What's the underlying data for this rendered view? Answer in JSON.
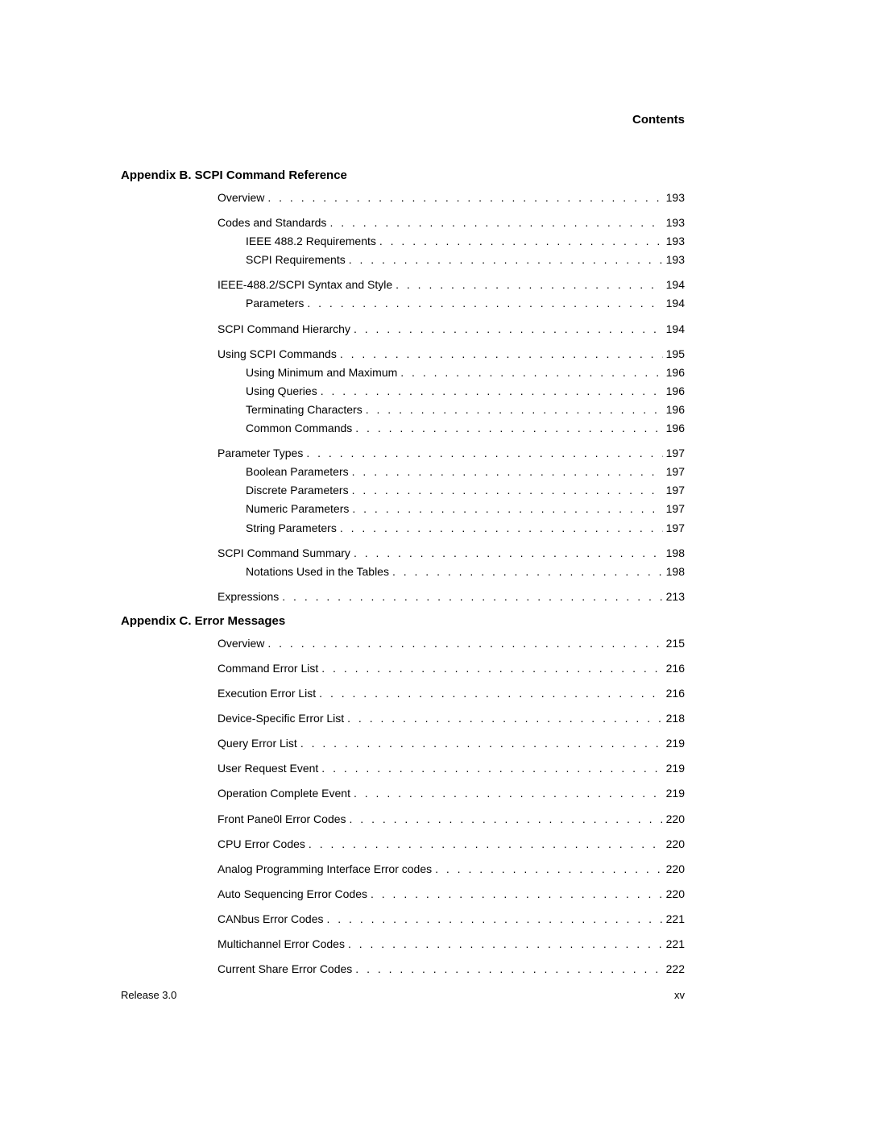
{
  "header": {
    "label": "Contents"
  },
  "sections": [
    {
      "title": "Appendix B. SCPI Command Reference",
      "groups": [
        [
          {
            "text": "Overview",
            "page": "193",
            "indent": 0
          }
        ],
        [
          {
            "text": "Codes and Standards",
            "page": "193",
            "indent": 0
          },
          {
            "text": "IEEE 488.2 Requirements",
            "page": "193",
            "indent": 1
          },
          {
            "text": "SCPI Requirements",
            "page": "193",
            "indent": 1
          }
        ],
        [
          {
            "text": "IEEE-488.2/SCPI Syntax and Style",
            "page": "194",
            "indent": 0
          },
          {
            "text": "Parameters",
            "page": "194",
            "indent": 1
          }
        ],
        [
          {
            "text": "SCPI Command Hierarchy",
            "page": "194",
            "indent": 0
          }
        ],
        [
          {
            "text": "Using SCPI Commands",
            "page": "195",
            "indent": 0
          },
          {
            "text": "Using Minimum and Maximum",
            "page": "196",
            "indent": 1
          },
          {
            "text": "Using Queries",
            "page": "196",
            "indent": 1
          },
          {
            "text": "Terminating Characters",
            "page": "196",
            "indent": 1
          },
          {
            "text": "Common Commands",
            "page": "196",
            "indent": 1
          }
        ],
        [
          {
            "text": "Parameter Types",
            "page": "197",
            "indent": 0
          },
          {
            "text": "Boolean Parameters",
            "page": "197",
            "indent": 1
          },
          {
            "text": "Discrete Parameters",
            "page": "197",
            "indent": 1
          },
          {
            "text": "Numeric Parameters",
            "page": "197",
            "indent": 1
          },
          {
            "text": "String Parameters",
            "page": "197",
            "indent": 1
          }
        ],
        [
          {
            "text": "SCPI Command Summary",
            "page": "198",
            "indent": 0
          },
          {
            "text": "Notations Used in the Tables",
            "page": "198",
            "indent": 1
          }
        ],
        [
          {
            "text": "Expressions",
            "page": "213",
            "indent": 0
          }
        ]
      ]
    },
    {
      "title": "Appendix C. Error Messages",
      "groups": [
        [
          {
            "text": "Overview",
            "page": "215",
            "indent": 0
          }
        ],
        [
          {
            "text": "Command Error List",
            "page": "216",
            "indent": 0
          }
        ],
        [
          {
            "text": "Execution Error List",
            "page": "216",
            "indent": 0
          }
        ],
        [
          {
            "text": "Device-Specific Error List",
            "page": "218",
            "indent": 0
          }
        ],
        [
          {
            "text": "Query Error List",
            "page": "219",
            "indent": 0
          }
        ],
        [
          {
            "text": "User Request Event",
            "page": "219",
            "indent": 0
          }
        ],
        [
          {
            "text": "Operation Complete Event",
            "page": "219",
            "indent": 0
          }
        ],
        [
          {
            "text": "Front Pane0l Error Codes",
            "page": "220",
            "indent": 0
          }
        ],
        [
          {
            "text": "CPU Error Codes",
            "page": "220",
            "indent": 0
          }
        ],
        [
          {
            "text": "Analog Programming Interface Error codes",
            "page": "220",
            "indent": 0
          }
        ],
        [
          {
            "text": "Auto Sequencing Error Codes",
            "page": "220",
            "indent": 0
          }
        ],
        [
          {
            "text": "CANbus Error Codes",
            "page": "221",
            "indent": 0
          }
        ],
        [
          {
            "text": "Multichannel Error Codes",
            "page": "221",
            "indent": 0
          }
        ],
        [
          {
            "text": "Current Share Error Codes",
            "page": "222",
            "indent": 0
          }
        ]
      ]
    }
  ],
  "footer": {
    "left": "Release 3.0",
    "right": "xv"
  }
}
